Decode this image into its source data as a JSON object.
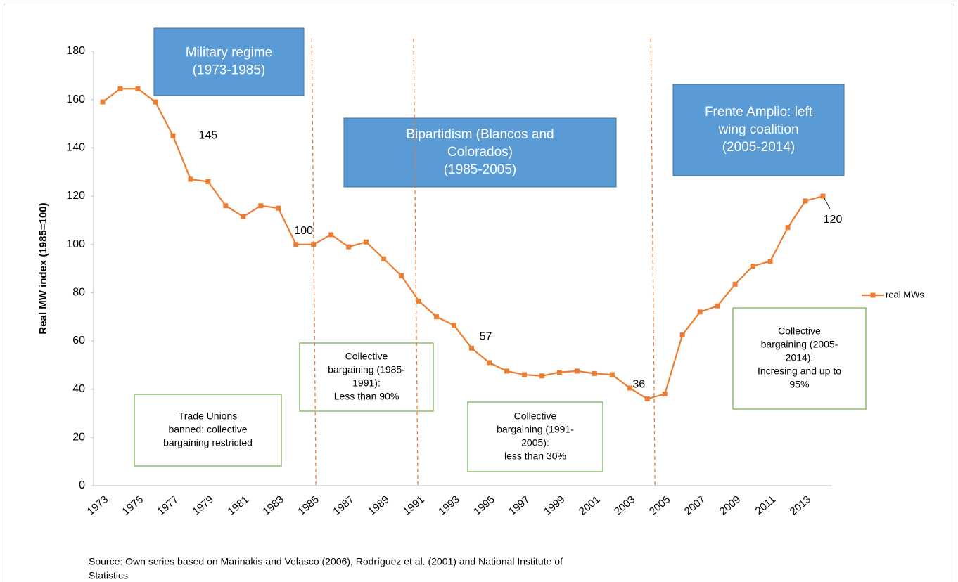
{
  "chart_data": {
    "type": "line",
    "y_axis_label": "Real MW index (1985=100)",
    "categories": [
      "1973",
      null,
      "1975",
      null,
      "1977",
      null,
      "1979",
      null,
      "1981",
      null,
      "1983",
      null,
      "1985",
      null,
      "1987",
      null,
      "1989",
      null,
      "1991",
      null,
      "1993",
      null,
      "1995",
      null,
      "1997",
      null,
      "1999",
      null,
      "2001",
      null,
      "2003",
      null,
      "2005",
      null,
      "2007",
      null,
      "2009",
      null,
      "2011",
      null,
      "2013",
      null
    ],
    "series": [
      {
        "name": "real MWs",
        "color": "#ed7d31",
        "values": [
          159,
          164.5,
          164.5,
          159,
          145,
          127,
          126,
          116,
          111.5,
          116,
          115,
          100,
          100,
          104,
          99,
          101,
          94,
          87,
          76.5,
          70,
          66.5,
          57,
          51,
          47.5,
          46,
          45.5,
          47,
          47.5,
          46.5,
          46,
          40.5,
          36,
          38,
          62.5,
          72,
          74.5,
          83.5,
          91,
          93,
          107,
          118,
          120
        ]
      }
    ],
    "labeled_points": [
      4,
      12,
      21,
      31,
      41
    ],
    "ylim": [
      0,
      180
    ],
    "yticks": [
      0,
      20,
      40,
      60,
      80,
      100,
      120,
      140,
      160,
      180
    ],
    "grid": false,
    "legend": "right",
    "period_dividers": [
      11.9,
      17.7,
      31.2
    ],
    "divider_color": "#ed7d31",
    "regime_boxes": [
      [
        "Military regime",
        "(1973-1985)"
      ],
      [
        "Bipartidism (Blancos  and",
        "Colorados)",
        "(1985-2005)"
      ],
      [
        "Frente Amplio: left",
        "wing coalition",
        "(2005-2014)"
      ]
    ],
    "regime_box_color": "#5b9bd5",
    "bargaining_boxes": [
      [
        "Trade Unions",
        "banned: collective",
        "bargaining restricted"
      ],
      [
        "Collective",
        "bargaining (1985-",
        "1991):",
        "Less than 90%"
      ],
      [
        "Collective",
        "bargaining (1991-",
        "2005):",
        "less than 30%"
      ],
      [
        "Collective",
        "bargaining (2005-",
        "2014):",
        "Incresing and up to",
        "95%"
      ]
    ],
    "bargaining_box_color": "#70ad47",
    "source": [
      "Source: Own series based on Marinakis and Velasco (2006), Rodríguez et al. (2001) and National Institute of",
      "Statistics"
    ]
  }
}
